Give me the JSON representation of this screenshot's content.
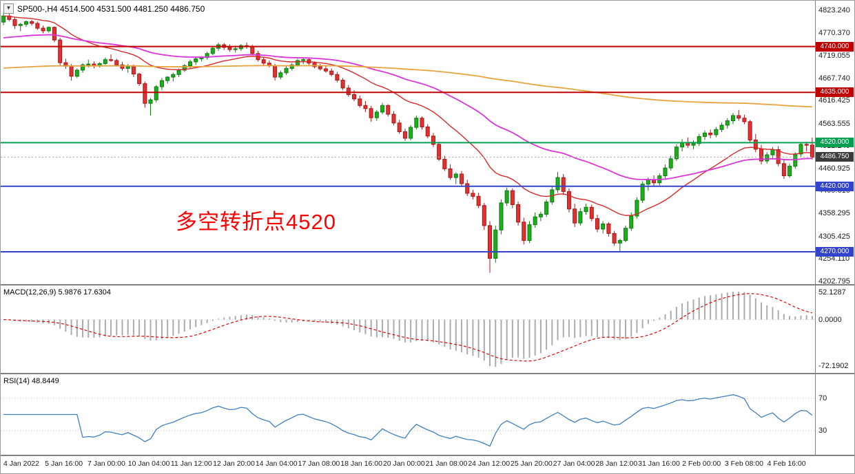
{
  "window": {
    "collapse_glyph": "▼",
    "symbol": "SP500-",
    "timeframe": "H4",
    "open": "4514.500",
    "high": "4531.500",
    "low": "4481.250",
    "close": "4486.750",
    "header_text": "SP500-,H4  4514.500 4531.500 4481.250 4486.750"
  },
  "annotation": {
    "text": "多空转折点4520",
    "color": "#FF0000"
  },
  "colors": {
    "background": "#FFFFFF",
    "candle_up": "#1CAE1C",
    "candle_up_border": "#0E7A0E",
    "candle_down": "#E03232",
    "candle_down_border": "#A81616",
    "separator": "#808080",
    "current_price_bg": "#3C3C3C"
  },
  "chart_data": [
    {
      "type": "candlestick",
      "symbol": "SP500-",
      "timeframe": "H4",
      "current_bar": {
        "open": 4514.5,
        "high": 4531.5,
        "low": 4481.25,
        "close": 4486.75
      },
      "ylim": [
        4196,
        4845
      ],
      "y_axis_labels": [
        "4823.240",
        "4770.370",
        "4719.055",
        "4667.740",
        "4616.425",
        "4563.555",
        "4512.240",
        "4460.925",
        "4409.610",
        "4358.295",
        "4305.425",
        "4254.110",
        "4202.795"
      ],
      "x_axis_labels": [
        "4 Jan 2022",
        "5 Jan 16:00",
        "7 Jan 00:00",
        "10 Jan 04:00",
        "11 Jan 12:00",
        "12 Jan 20:00",
        "14 Jan 04:00",
        "17 Jan 08:00",
        "18 Jan 16:00",
        "20 Jan 00:00",
        "21 Jan 08:00",
        "24 Jan 12:00",
        "25 Jan 20:00",
        "27 Jan 04:00",
        "28 Jan 12:00",
        "31 Jan 16:00",
        "2 Feb 00:00",
        "3 Feb 08:00",
        "4 Feb 16:00"
      ],
      "horizontal_lines": [
        {
          "price": 4740,
          "label": "4740.000",
          "color": "#C00000"
        },
        {
          "price": 4635,
          "label": "4635.000",
          "color": "#C00000"
        },
        {
          "price": 4520,
          "label": "4520.000",
          "color": "#00A050"
        },
        {
          "price": 4420,
          "label": "4420.000",
          "color": "#3344CC"
        },
        {
          "price": 4270,
          "label": "4270.000",
          "color": "#3344CC"
        }
      ],
      "current_price": {
        "price": 4486.75,
        "label": "4486.750",
        "color": "#3C3C3C"
      },
      "moving_averages": [
        {
          "name": "ma-fast",
          "period": 21,
          "type": "ema",
          "color": "#D42A2A",
          "width": 1.4
        },
        {
          "name": "ma-medium",
          "period": 55,
          "type": "ema",
          "seed": 4758,
          "color": "#D935D9",
          "width": 1.8
        },
        {
          "name": "ma-slow",
          "period": 330,
          "type": "ema",
          "seed": 4690,
          "color": "#E8A33D",
          "width": 1.8
        }
      ],
      "candles": [
        [
          4796,
          4817,
          4789,
          4810
        ],
        [
          4810,
          4818.5,
          4798,
          4802
        ],
        [
          4802,
          4808,
          4780,
          4788
        ],
        [
          4788,
          4794,
          4775,
          4791
        ],
        [
          4791,
          4800,
          4785,
          4797
        ],
        [
          4797,
          4801,
          4788,
          4793
        ],
        [
          4793,
          4797,
          4778,
          4782
        ],
        [
          4782,
          4788,
          4770,
          4776
        ],
        [
          4776,
          4786,
          4772,
          4784
        ],
        [
          4784,
          4786,
          4750,
          4755
        ],
        [
          4755,
          4760,
          4697,
          4703
        ],
        [
          4703,
          4712,
          4689,
          4695
        ],
        [
          4695,
          4700,
          4662,
          4672
        ],
        [
          4672,
          4690,
          4668,
          4686
        ],
        [
          4686,
          4702,
          4680,
          4698
        ],
        [
          4698,
          4710,
          4692,
          4700
        ],
        [
          4700,
          4706,
          4690,
          4696
        ],
        [
          4696,
          4704,
          4692,
          4701
        ],
        [
          4701,
          4715,
          4698,
          4710
        ],
        [
          4710,
          4722,
          4705,
          4708
        ],
        [
          4708,
          4712,
          4694,
          4698
        ],
        [
          4698,
          4705,
          4685,
          4690
        ],
        [
          4690,
          4700,
          4680,
          4695
        ],
        [
          4695,
          4699,
          4670,
          4677
        ],
        [
          4677,
          4680,
          4650,
          4655
        ],
        [
          4655,
          4660,
          4600,
          4610
        ],
        [
          4610,
          4622,
          4582,
          4618
        ],
        [
          4618,
          4652,
          4612,
          4648
        ],
        [
          4648,
          4668,
          4640,
          4662
        ],
        [
          4662,
          4672,
          4655,
          4670
        ],
        [
          4670,
          4680,
          4660,
          4676
        ],
        [
          4676,
          4690,
          4670,
          4686
        ],
        [
          4686,
          4700,
          4682,
          4696
        ],
        [
          4696,
          4710,
          4690,
          4705
        ],
        [
          4705,
          4715,
          4698,
          4712
        ],
        [
          4712,
          4718,
          4706,
          4715
        ],
        [
          4715,
          4728,
          4710,
          4724
        ],
        [
          4724,
          4740,
          4720,
          4736
        ],
        [
          4736,
          4749,
          4730,
          4744
        ],
        [
          4744,
          4748,
          4732,
          4738
        ],
        [
          4738,
          4745,
          4728,
          4733
        ],
        [
          4733,
          4742,
          4726,
          4735
        ],
        [
          4735,
          4746,
          4730,
          4742
        ],
        [
          4742,
          4749,
          4735,
          4740
        ],
        [
          4740,
          4744,
          4720,
          4724
        ],
        [
          4724,
          4730,
          4706,
          4710
        ],
        [
          4710,
          4716,
          4698,
          4702
        ],
        [
          4702,
          4708,
          4692,
          4696
        ],
        [
          4696,
          4700,
          4662,
          4670
        ],
        [
          4670,
          4685,
          4665,
          4680
        ],
        [
          4680,
          4695,
          4675,
          4690
        ],
        [
          4690,
          4702,
          4685,
          4698
        ],
        [
          4698,
          4712,
          4694,
          4708
        ],
        [
          4708,
          4715,
          4700,
          4710
        ],
        [
          4710,
          4714,
          4698,
          4702
        ],
        [
          4702,
          4706,
          4690,
          4694
        ],
        [
          4694,
          4700,
          4685,
          4689
        ],
        [
          4689,
          4696,
          4680,
          4684
        ],
        [
          4684,
          4690,
          4672,
          4676
        ],
        [
          4676,
          4682,
          4658,
          4663
        ],
        [
          4663,
          4668,
          4640,
          4645
        ],
        [
          4645,
          4652,
          4625,
          4630
        ],
        [
          4630,
          4640,
          4615,
          4620
        ],
        [
          4620,
          4628,
          4600,
          4605
        ],
        [
          4605,
          4615,
          4590,
          4598
        ],
        [
          4598,
          4604,
          4568,
          4577
        ],
        [
          4577,
          4595,
          4570,
          4590
        ],
        [
          4590,
          4611,
          4585,
          4605
        ],
        [
          4605,
          4608,
          4580,
          4585
        ],
        [
          4585,
          4592,
          4560,
          4565
        ],
        [
          4565,
          4572,
          4540,
          4545
        ],
        [
          4545,
          4552,
          4524,
          4530
        ],
        [
          4530,
          4560,
          4525,
          4555
        ],
        [
          4555,
          4582,
          4550,
          4576
        ],
        [
          4576,
          4580,
          4550,
          4556
        ],
        [
          4556,
          4562,
          4530,
          4535
        ],
        [
          4535,
          4542,
          4510,
          4516
        ],
        [
          4516,
          4522,
          4478,
          4482
        ],
        [
          4482,
          4490,
          4455,
          4460
        ],
        [
          4460,
          4470,
          4435,
          4440
        ],
        [
          4440,
          4452,
          4425,
          4448
        ],
        [
          4448,
          4455,
          4420,
          4426
        ],
        [
          4426,
          4435,
          4398,
          4404
        ],
        [
          4404,
          4412,
          4390,
          4397
        ],
        [
          4397,
          4405,
          4370,
          4376
        ],
        [
          4376,
          4382,
          4320,
          4330
        ],
        [
          4330,
          4340,
          4222,
          4255
        ],
        [
          4255,
          4330,
          4245,
          4320
        ],
        [
          4320,
          4390,
          4310,
          4382
        ],
        [
          4382,
          4417,
          4375,
          4410
        ],
        [
          4410,
          4415,
          4370,
          4378
        ],
        [
          4378,
          4385,
          4330,
          4338
        ],
        [
          4338,
          4348,
          4287,
          4296
        ],
        [
          4296,
          4340,
          4290,
          4332
        ],
        [
          4332,
          4360,
          4325,
          4350
        ],
        [
          4350,
          4362,
          4340,
          4356
        ],
        [
          4356,
          4390,
          4350,
          4384
        ],
        [
          4384,
          4420,
          4378,
          4412
        ],
        [
          4412,
          4453,
          4405,
          4440
        ],
        [
          4440,
          4448,
          4400,
          4408
        ],
        [
          4408,
          4415,
          4360,
          4368
        ],
        [
          4368,
          4380,
          4327,
          4336
        ],
        [
          4336,
          4370,
          4330,
          4362
        ],
        [
          4362,
          4380,
          4355,
          4372
        ],
        [
          4372,
          4378,
          4340,
          4346
        ],
        [
          4346,
          4355,
          4315,
          4322
        ],
        [
          4322,
          4340,
          4312,
          4334
        ],
        [
          4334,
          4338,
          4305,
          4312
        ],
        [
          4312,
          4318,
          4284,
          4290
        ],
        [
          4290,
          4300,
          4271,
          4296
        ],
        [
          4296,
          4330,
          4292,
          4324
        ],
        [
          4324,
          4360,
          4318,
          4352
        ],
        [
          4352,
          4395,
          4346,
          4388
        ],
        [
          4388,
          4432,
          4382,
          4425
        ],
        [
          4425,
          4440,
          4410,
          4435
        ],
        [
          4435,
          4445,
          4420,
          4428
        ],
        [
          4428,
          4450,
          4422,
          4444
        ],
        [
          4444,
          4470,
          4438,
          4462
        ],
        [
          4462,
          4490,
          4456,
          4483
        ],
        [
          4483,
          4516,
          4478,
          4510
        ],
        [
          4510,
          4528,
          4500,
          4520
        ],
        [
          4520,
          4532,
          4508,
          4514
        ],
        [
          4514,
          4525,
          4505,
          4518
        ],
        [
          4518,
          4540,
          4512,
          4534
        ],
        [
          4534,
          4548,
          4526,
          4542
        ],
        [
          4542,
          4550,
          4530,
          4538
        ],
        [
          4538,
          4556,
          4532,
          4550
        ],
        [
          4550,
          4566,
          4544,
          4560
        ],
        [
          4560,
          4576,
          4552,
          4570
        ],
        [
          4570,
          4588,
          4562,
          4582
        ],
        [
          4582,
          4595,
          4570,
          4576
        ],
        [
          4576,
          4584,
          4562,
          4568
        ],
        [
          4568,
          4572,
          4520,
          4526
        ],
        [
          4526,
          4540,
          4498,
          4505
        ],
        [
          4505,
          4515,
          4470,
          4478
        ],
        [
          4478,
          4498,
          4472,
          4492
        ],
        [
          4492,
          4510,
          4484,
          4504
        ],
        [
          4504,
          4512,
          4466,
          4472
        ],
        [
          4472,
          4480,
          4437,
          4444
        ],
        [
          4444,
          4472,
          4440,
          4466
        ],
        [
          4466,
          4498,
          4460,
          4494
        ],
        [
          4494,
          4520,
          4488,
          4516
        ],
        [
          4516,
          4522,
          4500,
          4514
        ],
        [
          4514.5,
          4531.5,
          4481.25,
          4486.75
        ]
      ]
    },
    {
      "type": "macd",
      "header": "MACD(12,26,9) 5.9876 17.6304",
      "params": [
        12,
        26,
        9
      ],
      "values": [
        "5.9876",
        "17.6304"
      ],
      "y_axis_labels": [
        "52.1287",
        "0.0000",
        "-72.1902"
      ],
      "histogram_color": "#ABABAB",
      "signal_color": "#E00000"
    },
    {
      "type": "rsi",
      "header": "RSI(14) 48.8449",
      "period": 14,
      "value": "48.8449",
      "levels": [
        70,
        30
      ],
      "level_labels": [
        "70",
        "30"
      ],
      "line_color": "#3E7FC1",
      "ylim": [
        0,
        100
      ]
    }
  ]
}
